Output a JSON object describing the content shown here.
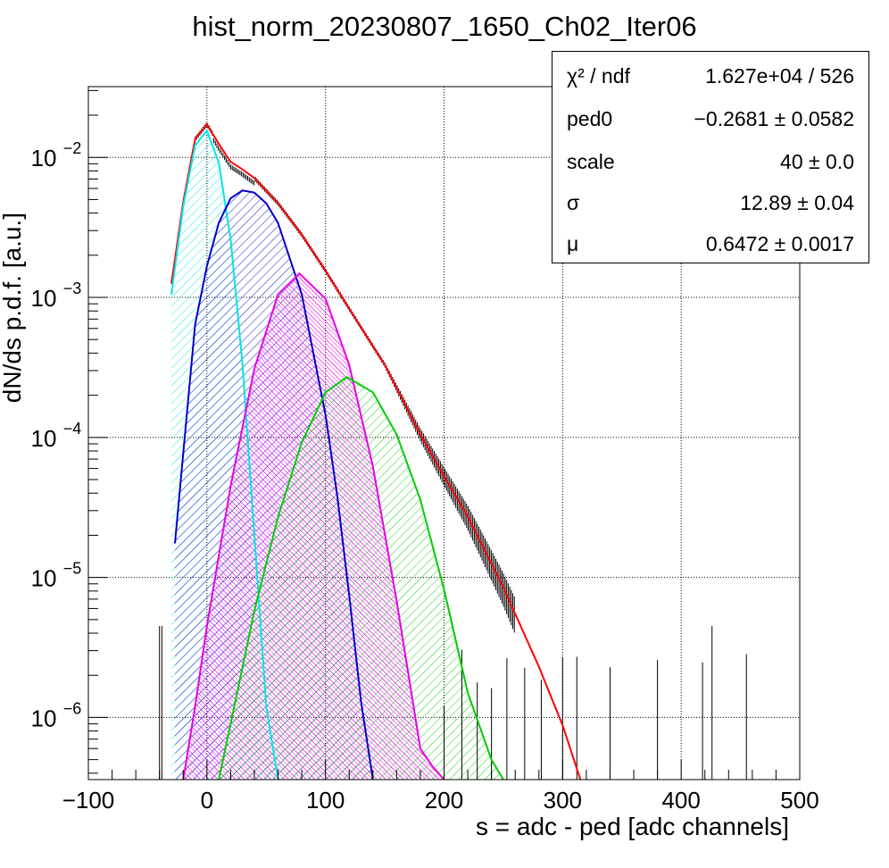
{
  "chart_data": {
    "type": "line",
    "title": "hist_norm_20230807_1650_Ch02_Iter06",
    "xlabel": "s = adc - ped [adc channels]",
    "ylabel": "dN/ds p.d.f. [a.u.]",
    "xlim": [
      -100,
      500
    ],
    "ylim": [
      3.6e-07,
      0.032
    ],
    "y_scale": "log",
    "grid": true,
    "x_ticks": [
      -100,
      0,
      100,
      200,
      300,
      400,
      500
    ],
    "x_tick_labels": [
      "−100",
      "0",
      "100",
      "200",
      "300",
      "400",
      "500"
    ],
    "y_ticks": [
      1e-06,
      1e-05,
      0.0001,
      0.001,
      0.01
    ],
    "y_tick_labels": [
      {
        "base": "10",
        "exp": "−6"
      },
      {
        "base": "10",
        "exp": "−5"
      },
      {
        "base": "10",
        "exp": "−4"
      },
      {
        "base": "10",
        "exp": "−3"
      },
      {
        "base": "10",
        "exp": "−2"
      }
    ],
    "series": [
      {
        "color": "#ff0000",
        "style": "line",
        "x": [
          -30,
          -20,
          -10,
          0,
          10,
          20,
          30,
          40,
          60,
          80,
          100,
          120,
          150,
          180,
          200,
          220,
          250,
          280,
          300,
          315
        ],
        "y": [
          0.00125,
          0.0048,
          0.0135,
          0.0172,
          0.0125,
          0.0093,
          0.0082,
          0.0071,
          0.0047,
          0.0028,
          0.00155,
          0.00083,
          0.00033,
          0.000105,
          5.3e-05,
          2.72e-05,
          8.5e-06,
          2.3e-06,
          8.8e-07,
          3.5e-07
        ]
      },
      {
        "color": "#00e5e5",
        "style": "hatched",
        "x": [
          -30,
          -20,
          -10,
          0,
          10,
          20,
          30,
          40,
          50,
          60
        ],
        "y": [
          0.00105,
          0.0045,
          0.0122,
          0.0155,
          0.0092,
          0.0026,
          0.00033,
          2e-05,
          1.2e-06,
          3.5e-07
        ]
      },
      {
        "color": "#0000cc",
        "style": "hatched",
        "x": [
          -27,
          -10,
          0,
          10,
          20,
          30,
          40,
          50,
          60,
          80,
          100,
          110,
          120,
          130,
          140
        ],
        "y": [
          1.75e-05,
          0.00064,
          0.00167,
          0.0034,
          0.0051,
          0.0058,
          0.0056,
          0.0047,
          0.0034,
          0.00105,
          0.000145,
          3.8e-05,
          7.5e-06,
          1.3e-06,
          3.5e-07
        ]
      },
      {
        "color": "#e600e6",
        "style": "hatched",
        "x": [
          -20,
          -10,
          0,
          20,
          40,
          60,
          78,
          100,
          120,
          140,
          160,
          180,
          190,
          200
        ],
        "y": [
          3.5e-07,
          1.2e-06,
          4.5e-06,
          4.5e-05,
          0.00031,
          0.00105,
          0.00148,
          0.00098,
          0.00033,
          6.2e-05,
          6.8e-06,
          6e-07,
          4.5e-07,
          3.5e-07
        ]
      },
      {
        "color": "#00cc00",
        "style": "hatched",
        "x": [
          10,
          20,
          40,
          60,
          80,
          100,
          118,
          140,
          160,
          180,
          200,
          220,
          240,
          250
        ],
        "y": [
          3.5e-07,
          9e-07,
          5.8e-06,
          2.7e-05,
          9.2e-05,
          0.00021,
          0.00027,
          0.00021,
          0.000105,
          3.6e-05,
          8.2e-06,
          1.5e-06,
          5e-07,
          3.5e-07
        ]
      }
    ],
    "stats_box": [
      {
        "label": "χ² / ndf",
        "value": "1.627e+04 / 526"
      },
      {
        "label": "ped0",
        "value": "−0.2681 ± 0.0582"
      },
      {
        "label": "scale",
        "value": "40 ± 0.0"
      },
      {
        "label": "σ",
        "value": "12.89 ± 0.04"
      },
      {
        "label": "μ",
        "value": "0.6472 ± 0.0017"
      }
    ]
  }
}
